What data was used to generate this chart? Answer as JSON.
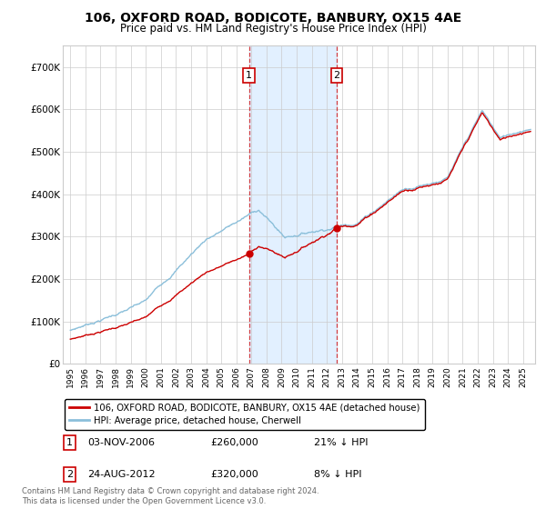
{
  "title": "106, OXFORD ROAD, BODICOTE, BANBURY, OX15 4AE",
  "subtitle": "Price paid vs. HM Land Registry's House Price Index (HPI)",
  "legend_line1": "106, OXFORD ROAD, BODICOTE, BANBURY, OX15 4AE (detached house)",
  "legend_line2": "HPI: Average price, detached house, Cherwell",
  "sale1_date": "03-NOV-2006",
  "sale1_price": 260000,
  "sale1_label": "21% ↓ HPI",
  "sale2_date": "24-AUG-2012",
  "sale2_price": 320000,
  "sale2_label": "8% ↓ HPI",
  "footnote": "Contains HM Land Registry data © Crown copyright and database right 2024.\nThis data is licensed under the Open Government Licence v3.0.",
  "hpi_color": "#8bbfda",
  "sale_color": "#cc0000",
  "sale1_x": 2006.84,
  "sale2_x": 2012.65,
  "ylim_max": 750000,
  "xlim_min": 1994.5,
  "xlim_max": 2025.8,
  "background_color": "#ffffff",
  "grid_color": "#cccccc",
  "shade_color": "#ddeeff"
}
